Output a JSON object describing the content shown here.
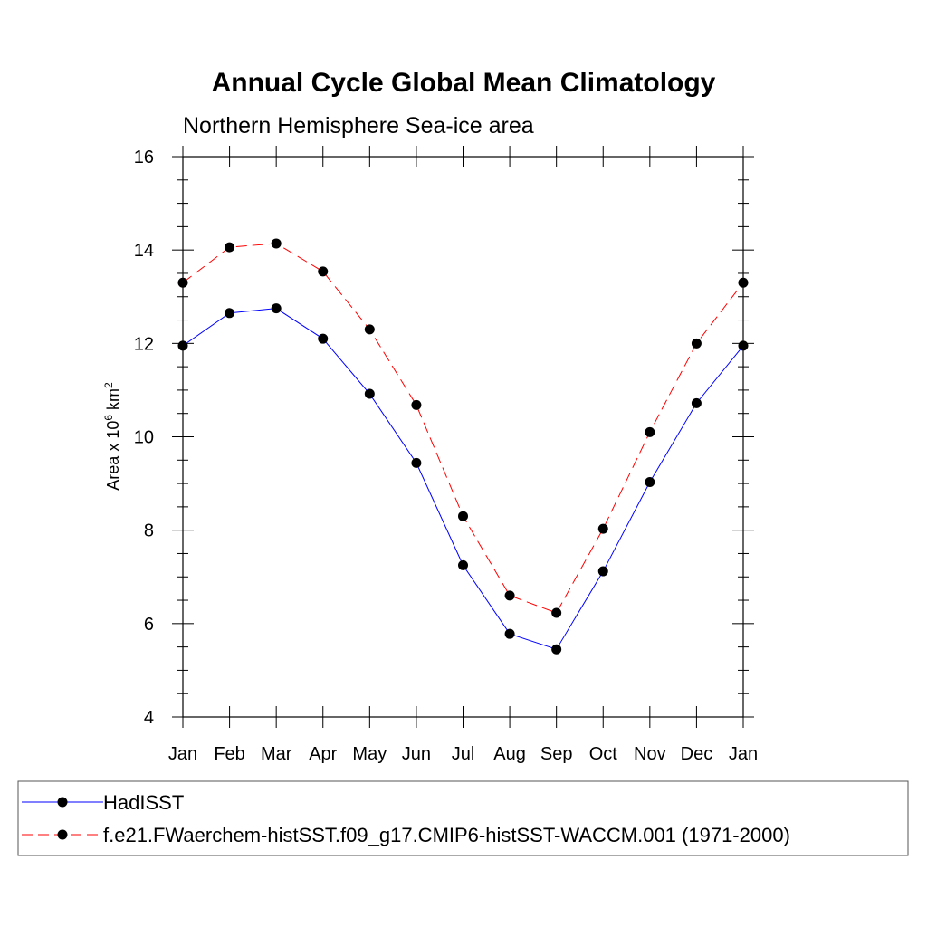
{
  "chart_data": {
    "type": "line",
    "title": "Annual Cycle Global Mean Climatology",
    "subtitle": "Northern Hemisphere Sea-ice area",
    "ylabel": {
      "prefix": "Area x 10",
      "exponent": "6",
      "unit": " km",
      "unit_exponent": "2"
    },
    "categories": [
      "Jan",
      "Feb",
      "Mar",
      "Apr",
      "May",
      "Jun",
      "Jul",
      "Aug",
      "Sep",
      "Oct",
      "Nov",
      "Dec",
      "Jan"
    ],
    "ylim": [
      4,
      16
    ],
    "yticks": [
      "4",
      "6",
      "8",
      "10",
      "12",
      "14",
      "16"
    ],
    "series": [
      {
        "name": "HadISST",
        "color": "#0000ff",
        "line_style": "solid",
        "values": [
          11.95,
          12.65,
          12.75,
          12.1,
          10.92,
          9.44,
          7.25,
          5.78,
          5.45,
          7.12,
          9.03,
          10.72,
          11.95
        ]
      },
      {
        "name": "f.e21.FWaerchem-histSST.f09_g17.CMIP6-histSST-WACCM.001 (1971-2000)",
        "color": "#ff0000",
        "line_style": "dashed",
        "values": [
          13.3,
          14.06,
          14.14,
          13.54,
          12.3,
          10.68,
          8.3,
          6.6,
          6.23,
          8.03,
          10.1,
          12.0,
          13.3
        ]
      }
    ],
    "marker": "filled-circle",
    "legend_position": "bottom"
  }
}
